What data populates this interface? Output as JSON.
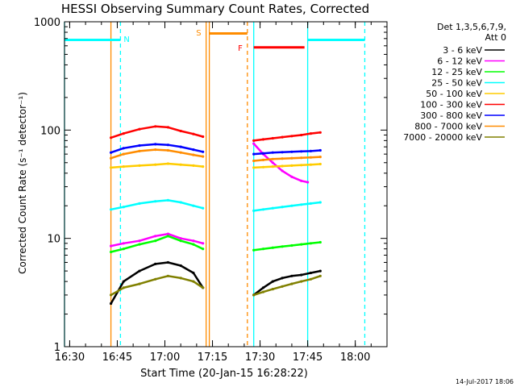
{
  "chart_data": {
    "type": "line",
    "title": "HESSI Observing Summary Count Rates, Corrected",
    "xlabel": "Start Time (20-Jan-15 16:28:22)",
    "ylabel": "Corrected Count Rate (s⁻¹ detector⁻¹)",
    "y_scale": "log",
    "xlim": [
      "16:28:22",
      "18:10:00"
    ],
    "ylim": [
      1,
      1000
    ],
    "x_ticks": [
      "16:30",
      "16:45",
      "17:00",
      "17:15",
      "17:30",
      "17:45",
      "18:00"
    ],
    "y_ticks": [
      "1",
      "10",
      "100",
      "1000"
    ],
    "footer_date": "14-Jul-2017 18:06",
    "legend_title": [
      "Det 1,3,5,6,7,9,",
      "Att 0"
    ],
    "legend_placement": "right",
    "series": [
      {
        "name": "3 - 6 keV",
        "color": "#000000",
        "segment1": {
          "x": [
            "16:43",
            "16:47",
            "16:52",
            "16:57",
            "17:01",
            "17:05",
            "17:09",
            "17:12"
          ],
          "y": [
            2.5,
            4.0,
            5.0,
            5.8,
            6.0,
            5.6,
            4.8,
            3.5
          ]
        },
        "segment2": {
          "x": [
            "17:28",
            "17:31",
            "17:34",
            "17:37",
            "17:40",
            "17:43",
            "17:46",
            "17:49"
          ],
          "y": [
            3.0,
            3.5,
            4.0,
            4.3,
            4.5,
            4.6,
            4.8,
            5.0
          ]
        }
      },
      {
        "name": "6 - 12 keV",
        "color": "#ff00ff",
        "segment1": {
          "x": [
            "16:43",
            "16:47",
            "16:52",
            "16:57",
            "17:01",
            "17:05",
            "17:09",
            "17:12"
          ],
          "y": [
            8.5,
            9.0,
            9.5,
            10.5,
            11.0,
            10.0,
            9.5,
            9.0
          ]
        },
        "segment2": {
          "x": [
            "17:28",
            "17:31",
            "17:34",
            "17:37",
            "17:40",
            "17:43",
            "17:45"
          ],
          "y": [
            75,
            60,
            50,
            42,
            37,
            34,
            33
          ]
        }
      },
      {
        "name": "12 - 25 keV",
        "color": "#00ff00",
        "segment1": {
          "x": [
            "16:43",
            "16:47",
            "16:52",
            "16:57",
            "17:01",
            "17:05",
            "17:09",
            "17:12"
          ],
          "y": [
            7.5,
            8.0,
            8.8,
            9.5,
            10.5,
            9.5,
            8.8,
            8.0
          ]
        },
        "segment2": {
          "x": [
            "17:28",
            "17:31",
            "17:34",
            "17:37",
            "17:40",
            "17:43",
            "17:46",
            "17:49"
          ],
          "y": [
            7.8,
            8.0,
            8.2,
            8.4,
            8.6,
            8.8,
            9.0,
            9.2
          ]
        }
      },
      {
        "name": "25 - 50 keV",
        "color": "#00ffff",
        "segment1": {
          "x": [
            "16:43",
            "16:47",
            "16:52",
            "16:57",
            "17:01",
            "17:05",
            "17:09",
            "17:12"
          ],
          "y": [
            18.5,
            19.5,
            21,
            22,
            22.5,
            21.5,
            20,
            19
          ]
        },
        "segment2": {
          "x": [
            "17:28",
            "17:31",
            "17:34",
            "17:37",
            "17:40",
            "17:43",
            "17:46",
            "17:49"
          ],
          "y": [
            18,
            18.5,
            19,
            19.5,
            20,
            20.5,
            21,
            21.5
          ]
        }
      },
      {
        "name": "50 - 100 keV",
        "color": "#ffcc00",
        "segment1": {
          "x": [
            "16:43",
            "16:47",
            "16:52",
            "16:57",
            "17:01",
            "17:05",
            "17:09",
            "17:12"
          ],
          "y": [
            45,
            46,
            47,
            48,
            49,
            48,
            47,
            46
          ]
        },
        "segment2": {
          "x": [
            "17:28",
            "17:31",
            "17:34",
            "17:37",
            "17:40",
            "17:43",
            "17:46",
            "17:49"
          ],
          "y": [
            45,
            45.5,
            46,
            46.5,
            47,
            47.5,
            48,
            48.5
          ]
        }
      },
      {
        "name": "100 - 300 keV",
        "color": "#ff0000",
        "segment1": {
          "x": [
            "16:43",
            "16:47",
            "16:52",
            "16:57",
            "17:01",
            "17:05",
            "17:09",
            "17:12"
          ],
          "y": [
            85,
            93,
            102,
            108,
            106,
            98,
            92,
            87
          ]
        },
        "segment2": {
          "x": [
            "17:28",
            "17:31",
            "17:34",
            "17:37",
            "17:40",
            "17:43",
            "17:46",
            "17:49"
          ],
          "y": [
            80,
            82,
            84,
            86,
            88,
            90,
            93,
            95
          ]
        }
      },
      {
        "name": "300 - 800 keV",
        "color": "#0000ff",
        "segment1": {
          "x": [
            "16:43",
            "16:47",
            "16:52",
            "16:57",
            "17:01",
            "17:05",
            "17:09",
            "17:12"
          ],
          "y": [
            62,
            68,
            72,
            74,
            73,
            70,
            66,
            63
          ]
        },
        "segment2": {
          "x": [
            "17:28",
            "17:31",
            "17:34",
            "17:37",
            "17:40",
            "17:43",
            "17:46",
            "17:49"
          ],
          "y": [
            60,
            61,
            62,
            62.5,
            63,
            63.5,
            64,
            65
          ]
        }
      },
      {
        "name": "800 - 7000 keV",
        "color": "#ff8c00",
        "segment1": {
          "x": [
            "16:43",
            "16:47",
            "16:52",
            "16:57",
            "17:01",
            "17:05",
            "17:09",
            "17:12"
          ],
          "y": [
            55,
            60,
            64,
            66,
            65,
            62,
            59,
            57
          ]
        },
        "segment2": {
          "x": [
            "17:28",
            "17:31",
            "17:34",
            "17:37",
            "17:40",
            "17:43",
            "17:46",
            "17:49"
          ],
          "y": [
            52,
            53,
            54,
            54.5,
            55,
            55.5,
            56,
            56.5
          ]
        }
      },
      {
        "name": "7000 - 20000 keV",
        "color": "#808000",
        "segment1": {
          "x": [
            "16:43",
            "16:47",
            "16:52",
            "16:57",
            "17:01",
            "17:05",
            "17:09",
            "17:12"
          ],
          "y": [
            3.0,
            3.5,
            3.8,
            4.2,
            4.5,
            4.3,
            4.0,
            3.5
          ]
        },
        "segment2": {
          "x": [
            "17:28",
            "17:31",
            "17:34",
            "17:37",
            "17:40",
            "17:43",
            "17:46",
            "17:49"
          ],
          "y": [
            3.0,
            3.2,
            3.4,
            3.6,
            3.8,
            4.0,
            4.2,
            4.5
          ]
        }
      }
    ],
    "markers": [
      {
        "label": "N",
        "time": "16:46:00",
        "color": "#00ffff",
        "y": 700
      },
      {
        "label": "S",
        "time": "17:13:00",
        "color": "#ff8c00",
        "y": 800
      },
      {
        "label": "F",
        "time": "17:26:00",
        "color": "#ff0000",
        "y": 580
      }
    ],
    "status_bars": [
      {
        "name": "night",
        "color": "#00ffff",
        "y": 680,
        "intervals": [
          [
            "16:28:22",
            "16:46:00"
          ],
          [
            "17:45:00",
            "18:03:00"
          ]
        ]
      },
      {
        "name": "saa",
        "color": "#ff8c00",
        "y": 780,
        "intervals": [
          [
            "17:14:00",
            "17:26:00"
          ]
        ]
      },
      {
        "name": "flare",
        "color": "#ff0000",
        "y": 580,
        "intervals": [
          [
            "17:28:00",
            "17:44:00"
          ]
        ]
      }
    ],
    "vertical_lines": [
      {
        "time": "16:28:22",
        "color": "#00ffff",
        "style": "solid"
      },
      {
        "time": "16:46:00",
        "color": "#00ffff",
        "style": "dashed"
      },
      {
        "time": "16:43:00",
        "color": "#ff8c00",
        "style": "solid"
      },
      {
        "time": "17:13:00",
        "color": "#ff8c00",
        "style": "solid"
      },
      {
        "time": "17:14:00",
        "color": "#ff8c00",
        "style": "solid"
      },
      {
        "time": "17:26:00",
        "color": "#ff8c00",
        "style": "dashed"
      },
      {
        "time": "17:28:00",
        "color": "#00ffff",
        "style": "solid"
      },
      {
        "time": "17:45:00",
        "color": "#00ffff",
        "style": "solid"
      },
      {
        "time": "18:03:00",
        "color": "#00ffff",
        "style": "dashed"
      }
    ]
  }
}
